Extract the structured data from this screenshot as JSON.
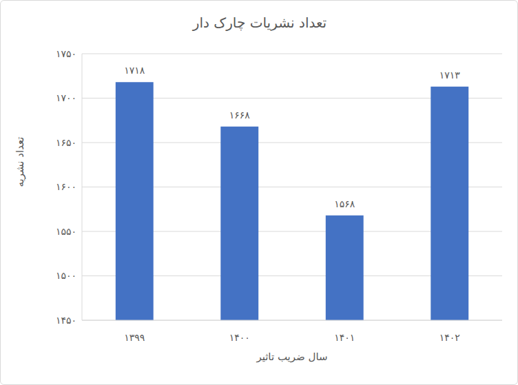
{
  "chart_data": {
    "type": "bar",
    "title": "تعداد نشریات چارک دار",
    "x_label": "سال ضریب تاثیر",
    "y_label": "تعداد نشریه",
    "categories": [
      "۱۳۹۹",
      "۱۴۰۰",
      "۱۴۰۱",
      "۱۴۰۲"
    ],
    "values": [
      1718,
      1668,
      1568,
      1713
    ],
    "value_labels": [
      "۱۷۱۸",
      "۱۶۶۸",
      "۱۵۶۸",
      "۱۷۱۳"
    ],
    "color": "#4472c4",
    "ylim": [
      1450,
      1750
    ],
    "yticks": [
      {
        "value": 1450,
        "label": "۱۴۵۰"
      },
      {
        "value": 1500,
        "label": "۱۵۰۰"
      },
      {
        "value": 1550,
        "label": "۱۵۵۰"
      },
      {
        "value": 1600,
        "label": "۱۶۰۰"
      },
      {
        "value": 1650,
        "label": "۱۶۵۰"
      },
      {
        "value": 1700,
        "label": "۱۷۰۰"
      },
      {
        "value": 1750,
        "label": "۱۷۵۰"
      }
    ],
    "grid": true,
    "data_labels": true
  }
}
